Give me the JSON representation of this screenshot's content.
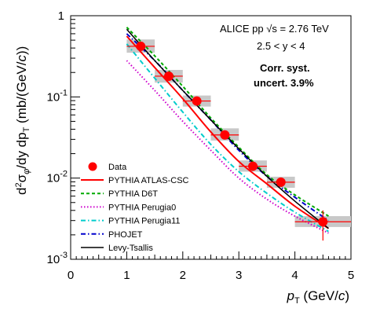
{
  "chart_data": {
    "type": "line",
    "xlim": [
      0,
      5
    ],
    "ylim": [
      0.001,
      1
    ],
    "ylog": true,
    "grid": false,
    "legend_placement": "bottom-left",
    "xticks": [
      "0",
      "1",
      "2",
      "3",
      "4",
      "5"
    ],
    "yticks": [
      "1",
      "10^{-1}",
      "10^{-2}",
      "10^{-3}"
    ],
    "xlabel": "p_T (GeV/c)",
    "ylabel": "d²σ_φ/dy dp_T (mb/(GeV/c))",
    "annotations": [
      "ALICE pp √s = 2.76 TeV",
      "2.5 < y < 4",
      "Corr. syst.",
      "uncert. 3.9%"
    ],
    "data": {
      "name": "Data",
      "color": "#ff0000",
      "x": [
        1.25,
        1.75,
        2.25,
        2.75,
        3.25,
        3.75,
        4.5
      ],
      "y": [
        0.42,
        0.18,
        0.089,
        0.034,
        0.014,
        0.0089,
        0.0029
      ],
      "xerr": [
        0.25,
        0.25,
        0.25,
        0.25,
        0.25,
        0.25,
        0.5
      ],
      "syst_low": [
        0.35,
        0.15,
        0.076,
        0.029,
        0.012,
        0.0076,
        0.0025
      ],
      "syst_high": [
        0.51,
        0.215,
        0.104,
        0.041,
        0.0165,
        0.0104,
        0.0034
      ],
      "stat_low": [
        0.4,
        0.17,
        0.085,
        0.031,
        0.013,
        0.0079,
        0.0017
      ],
      "stat_high": [
        0.45,
        0.19,
        0.093,
        0.037,
        0.0155,
        0.0098,
        0.004
      ]
    },
    "series": [
      {
        "name": "PYTHIA ATLAS-CSC",
        "color": "#ff0000",
        "dash": "",
        "width": 2,
        "x": [
          1,
          1.5,
          2,
          2.5,
          3,
          3.5,
          4,
          4.6
        ],
        "y": [
          0.56,
          0.23,
          0.095,
          0.037,
          0.016,
          0.0085,
          0.0045,
          0.0024
        ]
      },
      {
        "name": "PYTHIA D6T",
        "color": "#00aa00",
        "dash": "4,3",
        "width": 2,
        "x": [
          1,
          1.5,
          2,
          2.5,
          3,
          3.5,
          4,
          4.6
        ],
        "y": [
          0.72,
          0.32,
          0.135,
          0.055,
          0.024,
          0.011,
          0.0062,
          0.0034
        ]
      },
      {
        "name": "PYTHIA Perugia0",
        "color": "#cc00cc",
        "dash": "1.5,2.5",
        "width": 2,
        "x": [
          1,
          1.5,
          2,
          2.5,
          3,
          3.5,
          4,
          4.6
        ],
        "y": [
          0.28,
          0.12,
          0.05,
          0.022,
          0.01,
          0.0055,
          0.0034,
          0.0021
        ]
      },
      {
        "name": "PYTHIA Perugia11",
        "color": "#00cccc",
        "dash": "6,3,1.5,3",
        "width": 2,
        "x": [
          1,
          1.5,
          2,
          2.5,
          3,
          3.5,
          4,
          4.6
        ],
        "y": [
          0.45,
          0.17,
          0.065,
          0.026,
          0.012,
          0.0065,
          0.0038,
          0.0022
        ]
      },
      {
        "name": "PHOJET",
        "color": "#0000cc",
        "dash": "6,3,1.5,3",
        "width": 2,
        "x": [
          1,
          1.5,
          2,
          2.5,
          3,
          3.5,
          4,
          4.6
        ],
        "y": [
          0.6,
          0.28,
          0.12,
          0.052,
          0.022,
          0.0105,
          0.0058,
          0.003
        ]
      },
      {
        "name": "Levy-Tsallis",
        "color": "#000000",
        "dash": "",
        "width": 1.5,
        "x": [
          1,
          1.5,
          2,
          2.5,
          3,
          3.5,
          4,
          4.6
        ],
        "y": [
          0.68,
          0.28,
          0.12,
          0.052,
          0.023,
          0.0105,
          0.0052,
          0.0024
        ]
      }
    ]
  }
}
